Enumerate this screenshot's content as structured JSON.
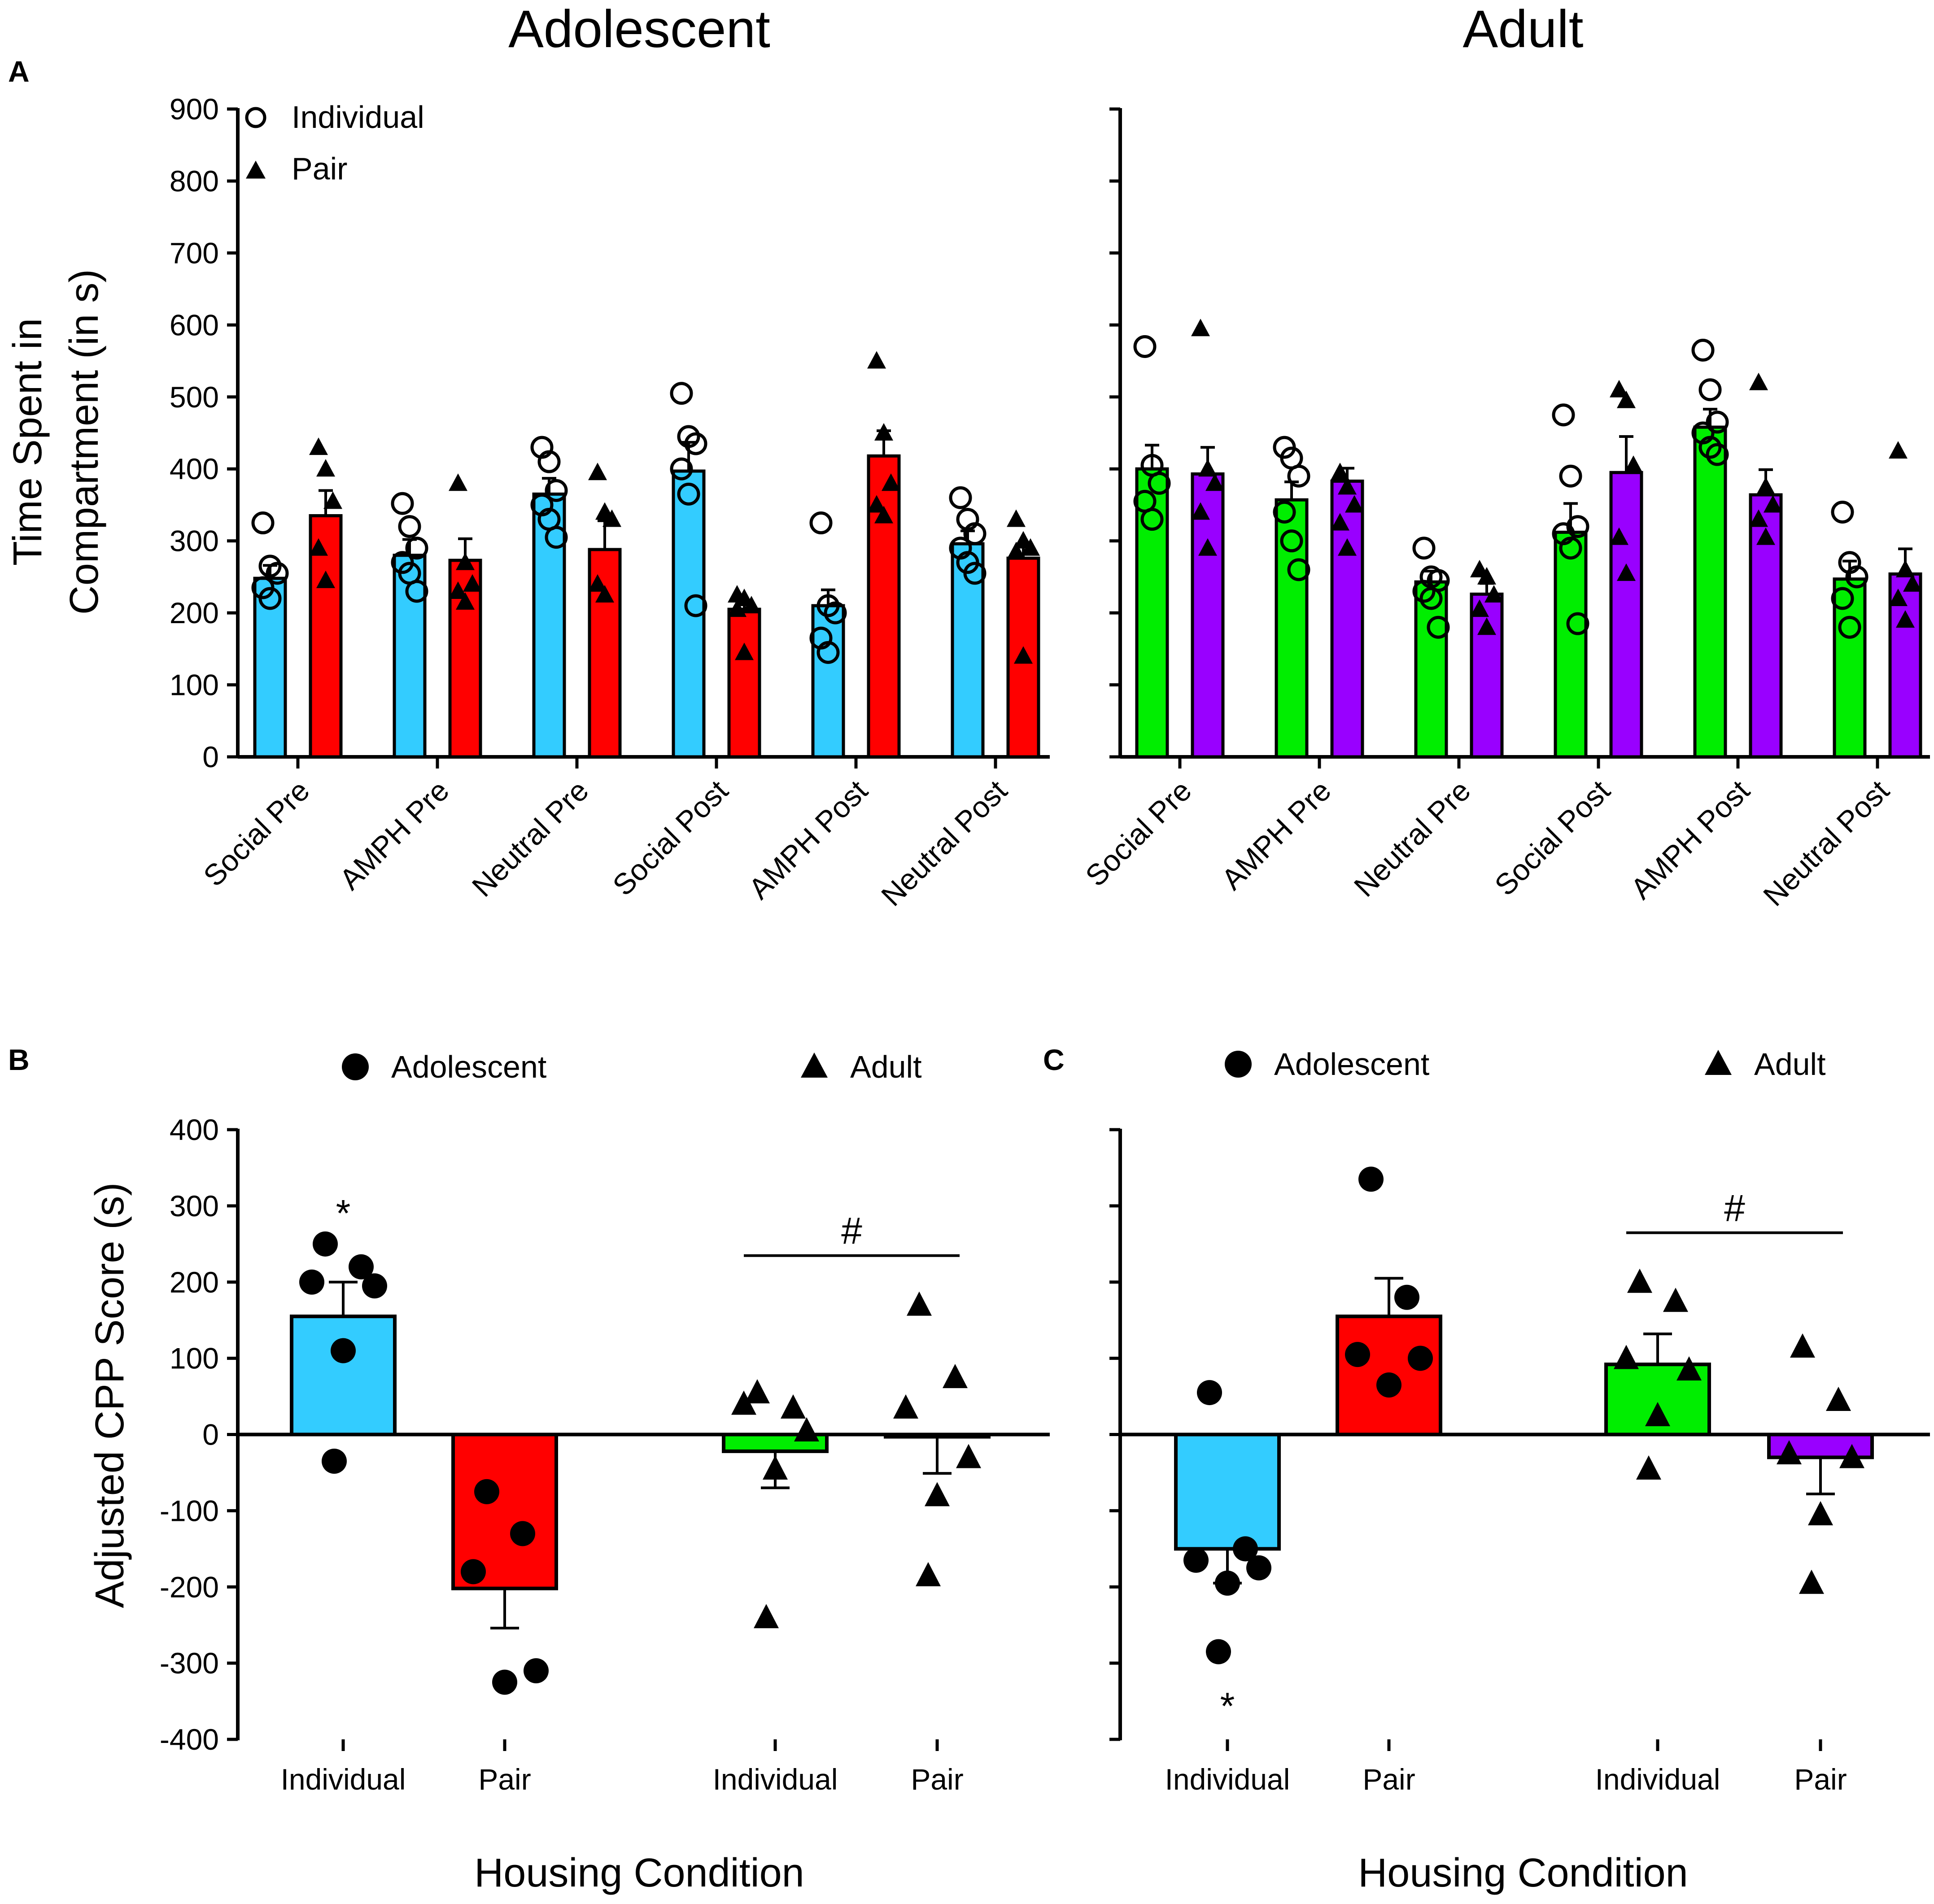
{
  "colors": {
    "adolescent_individual": "#33ccff",
    "adolescent_pair": "#ff0000",
    "adult_individual": "#00ee00",
    "adult_pair": "#9900ff",
    "axis": "#000000"
  },
  "chart_data": [
    {
      "panel": "A",
      "title": "Adolescent",
      "type": "bar",
      "ylabel_line1": "Time Spent in",
      "ylabel_line2": "Compartment (in s)",
      "ylim": [
        0,
        900
      ],
      "yticks": [
        0,
        100,
        200,
        300,
        400,
        500,
        600,
        700,
        800,
        900
      ],
      "show_tick_labels": true,
      "categories": [
        "Social Pre",
        "AMPH Pre",
        "Neutral Pre",
        "Social Post",
        "AMPH Post",
        "Neutral Post"
      ],
      "legend": [
        {
          "label": "Individual",
          "marker": "circle-open"
        },
        {
          "label": "Pair",
          "marker": "triangle-filled"
        }
      ],
      "series": [
        {
          "name": "Individual",
          "marker": "circle-open",
          "color_key": "adolescent_individual",
          "values": [
            248,
            280,
            365,
            397,
            210,
            296
          ],
          "errors": [
            18,
            22,
            22,
            40,
            22,
            18
          ],
          "points": [
            [
              325,
              265,
              255,
              235,
              220
            ],
            [
              352,
              320,
              290,
              270,
              255,
              230
            ],
            [
              430,
              410,
              370,
              350,
              330,
              305
            ],
            [
              505,
              445,
              435,
              400,
              365,
              210
            ],
            [
              325,
              210,
              200,
              165,
              145
            ],
            [
              360,
              330,
              310,
              290,
              270,
              255
            ]
          ]
        },
        {
          "name": "Pair",
          "marker": "triangle-filled",
          "color_key": "adolescent_pair",
          "values": [
            335,
            273,
            288,
            205,
            418,
            276
          ],
          "errors": [
            35,
            30,
            40,
            12,
            35,
            20
          ],
          "points": [
            [
              430,
              400,
              355,
              290,
              245
            ],
            [
              380,
              270,
              240,
              230,
              215
            ],
            [
              395,
              340,
              330,
              240,
              225
            ],
            [
              225,
              220,
              210,
              205,
              145
            ],
            [
              550,
              450,
              380,
              350,
              335
            ],
            [
              330,
              300,
              290,
              285,
              140
            ]
          ]
        }
      ]
    },
    {
      "panel": "A",
      "title": "Adult",
      "type": "bar",
      "ylim": [
        0,
        900
      ],
      "yticks": [
        0,
        100,
        200,
        300,
        400,
        500,
        600,
        700,
        800,
        900
      ],
      "show_tick_labels": false,
      "categories": [
        "Social Pre",
        "AMPH Pre",
        "Neutral Pre",
        "Social Post",
        "AMPH Post",
        "Neutral Post"
      ],
      "series": [
        {
          "name": "Individual",
          "marker": "circle-open",
          "color_key": "adult_individual",
          "values": [
            400,
            357,
            243,
            312,
            458,
            247
          ],
          "errors": [
            33,
            25,
            15,
            40,
            25,
            25
          ],
          "points": [
            [
              570,
              405,
              380,
              355,
              330
            ],
            [
              430,
              415,
              390,
              340,
              300,
              260
            ],
            [
              290,
              250,
              245,
              230,
              220,
              180
            ],
            [
              475,
              390,
              320,
              310,
              290,
              185
            ],
            [
              565,
              510,
              465,
              450,
              430,
              420
            ],
            [
              340,
              270,
              250,
              220,
              180
            ]
          ]
        },
        {
          "name": "Pair",
          "marker": "triangle-filled",
          "color_key": "adult_pair",
          "values": [
            393,
            383,
            226,
            395,
            364,
            254
          ],
          "errors": [
            37,
            18,
            15,
            50,
            35,
            35
          ],
          "points": [
            [
              595,
              400,
              380,
              340,
              290
            ],
            [
              395,
              375,
              350,
              325,
              290
            ],
            [
              260,
              250,
              225,
              205,
              180
            ],
            [
              510,
              495,
              405,
              305,
              255
            ],
            [
              520,
              375,
              350,
              330,
              305
            ],
            [
              425,
              260,
              240,
              220,
              190
            ]
          ]
        }
      ]
    },
    {
      "panel": "B",
      "type": "bar",
      "ylabel": "Adjusted CPP Score (s)",
      "xlabel": "Housing Condition",
      "ylim": [
        -400,
        400
      ],
      "yticks": [
        -400,
        -300,
        -200,
        -100,
        0,
        100,
        200,
        300,
        400
      ],
      "show_tick_labels": true,
      "legend": [
        {
          "label": "Adolescent",
          "marker": "circle-filled"
        },
        {
          "label": "Adult",
          "marker": "triangle-filled"
        }
      ],
      "groups": [
        {
          "group": "Adolescent",
          "label": "Individual",
          "marker": "circle",
          "color_key": "adolescent_individual",
          "value": 155,
          "error": 45,
          "points": [
            250,
            220,
            200,
            195,
            110,
            -35
          ]
        },
        {
          "group": "Adolescent",
          "label": "Pair",
          "marker": "circle",
          "color_key": "adolescent_pair",
          "value": -202,
          "error": 52,
          "points": [
            -75,
            -130,
            -180,
            -310,
            -325
          ]
        },
        {
          "group": "Adult",
          "label": "Individual",
          "marker": "triangle",
          "color_key": "adult_individual",
          "value": -22,
          "error": 48,
          "points": [
            55,
            35,
            40,
            5,
            -45,
            -240
          ]
        },
        {
          "group": "Adult",
          "label": "Pair",
          "marker": "triangle",
          "color_key": "adult_pair",
          "value": -3,
          "error": 48,
          "points": [
            170,
            75,
            35,
            -30,
            -80,
            -185
          ]
        }
      ],
      "annotations": [
        {
          "text": "*",
          "target": 0,
          "position": "above"
        },
        {
          "text": "#",
          "target": [
            2,
            3
          ],
          "position": "bracket"
        }
      ]
    },
    {
      "panel": "C",
      "type": "bar",
      "xlabel": "Housing Condition",
      "ylim": [
        -400,
        400
      ],
      "yticks": [
        -400,
        -300,
        -200,
        -100,
        0,
        100,
        200,
        300,
        400
      ],
      "show_tick_labels": false,
      "legend": [
        {
          "label": "Adolescent",
          "marker": "circle-filled"
        },
        {
          "label": "Adult",
          "marker": "triangle-filled"
        }
      ],
      "groups": [
        {
          "group": "Adolescent",
          "label": "Individual",
          "marker": "circle",
          "color_key": "adolescent_individual",
          "value": -150,
          "error": 45,
          "points": [
            55,
            -150,
            -165,
            -175,
            -195,
            -285
          ]
        },
        {
          "group": "Adolescent",
          "label": "Pair",
          "marker": "circle",
          "color_key": "adolescent_pair",
          "value": 155,
          "error": 50,
          "points": [
            335,
            180,
            105,
            100,
            65
          ]
        },
        {
          "group": "Adult",
          "label": "Individual",
          "marker": "triangle",
          "color_key": "adult_individual",
          "value": 92,
          "error": 40,
          "points": [
            200,
            175,
            100,
            85,
            25,
            -45
          ]
        },
        {
          "group": "Adult",
          "label": "Pair",
          "marker": "triangle",
          "color_key": "adult_pair",
          "value": -30,
          "error": 48,
          "points": [
            115,
            45,
            -25,
            -30,
            -105,
            -195
          ]
        }
      ],
      "annotations": [
        {
          "text": "*",
          "target": 0,
          "position": "below"
        },
        {
          "text": "#",
          "target": [
            2,
            3
          ],
          "position": "bracket"
        }
      ]
    }
  ]
}
